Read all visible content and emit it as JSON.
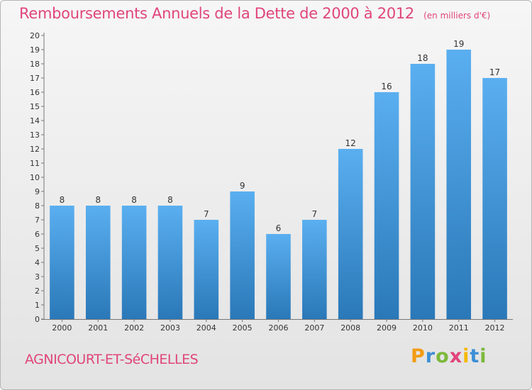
{
  "header": {
    "title": "Remboursements Annuels de la Dette de 2000 à 2012",
    "subtitle": "(en milliers d'€)"
  },
  "footer": {
    "commune": "AGNICOURT-ET-SéCHELLES",
    "logo": {
      "letters": [
        "P",
        "r",
        "o",
        "x",
        "i",
        "t",
        "i"
      ],
      "colors": [
        "#f39c12",
        "#3d8fd6",
        "#7cb83a",
        "#e0457b",
        "#f5b800",
        "#3d8fd6",
        "#7cb83a"
      ],
      "icon": "proxiti-logo"
    }
  },
  "chart_data": {
    "type": "bar",
    "title": "Remboursements Annuels de la Dette de 2000 à 2012",
    "subtitle": "(en milliers d'€)",
    "categories": [
      "2000",
      "2001",
      "2002",
      "2003",
      "2004",
      "2005",
      "2006",
      "2007",
      "2008",
      "2009",
      "2010",
      "2011",
      "2012"
    ],
    "values": [
      8,
      8,
      8,
      8,
      7,
      9,
      6,
      7,
      12,
      16,
      18,
      19,
      17
    ],
    "data_labels": [
      "8",
      "8",
      "8",
      "8",
      "7",
      "9",
      "6",
      "7",
      "12",
      "16",
      "18",
      "19",
      "17"
    ],
    "xlabel": "",
    "ylabel": "",
    "ylim": [
      0,
      20
    ],
    "yticks": [
      "0",
      "1",
      "2",
      "3",
      "4",
      "5",
      "6",
      "7",
      "8",
      "9",
      "10",
      "11",
      "12",
      "13",
      "14",
      "15",
      "16",
      "17",
      "18",
      "19",
      "20"
    ],
    "grid": false,
    "legend": "none",
    "colors": {
      "bar_top": "#5aaff0",
      "bar_bottom": "#2a78b8",
      "axis": "#777777"
    }
  }
}
